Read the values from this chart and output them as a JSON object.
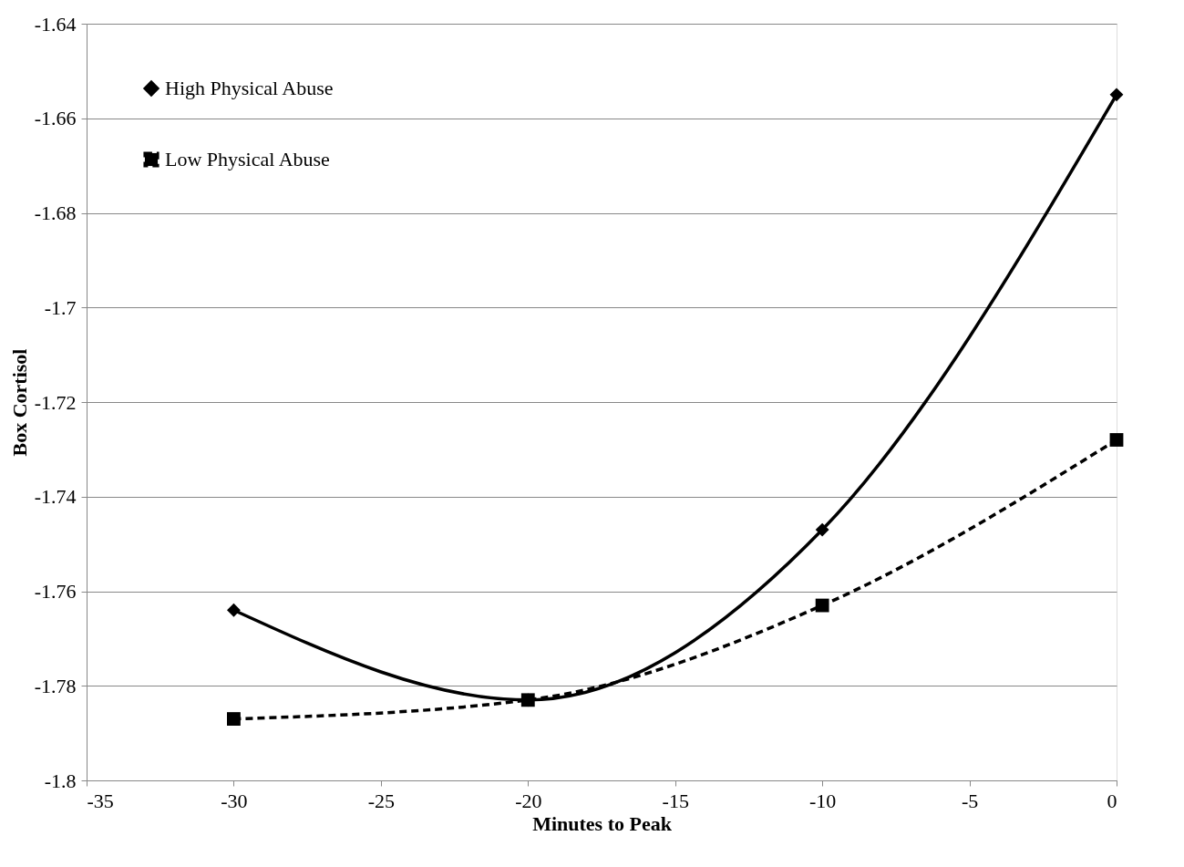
{
  "chart_data": {
    "type": "line",
    "xlabel": "Minutes to Peak",
    "ylabel": "Box Cortisol",
    "x": [
      -30,
      -20,
      -10,
      0
    ],
    "series": [
      {
        "name": "High Physical Abuse",
        "color": "#000000",
        "marker": "diamond",
        "line_style": "solid",
        "values": [
          -1.764,
          -1.783,
          -1.747,
          -1.655
        ]
      },
      {
        "name": "Low Physical Abuse",
        "color": "#000000",
        "marker": "square",
        "line_style": "dashed",
        "values": [
          -1.787,
          -1.783,
          -1.763,
          -1.728
        ]
      }
    ],
    "xlim": [
      -35,
      0
    ],
    "xticks": [
      -35,
      -30,
      -25,
      -20,
      -15,
      -10,
      -5,
      0
    ],
    "ylim": [
      -1.8,
      -1.64
    ],
    "yticks": [
      -1.8,
      -1.78,
      -1.76,
      -1.74,
      -1.72,
      -1.7,
      -1.68,
      -1.66,
      -1.64
    ],
    "grid": "y",
    "legend": "top left"
  }
}
